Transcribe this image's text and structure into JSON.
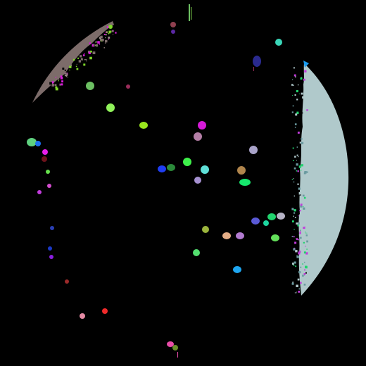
{
  "scene": {
    "background": "#000000",
    "elements": [
      {
        "name": "brown-crescent",
        "color": "#7d6c6a",
        "kind": "crescent"
      },
      {
        "name": "pale-blue-crescent",
        "color": "#b0c9cb",
        "kind": "crescent"
      },
      {
        "name": "blue-marker",
        "color": "#1a9bef",
        "kind": "marker"
      }
    ],
    "blobs": [
      {
        "color": "#8f3f4f"
      },
      {
        "color": "#5b28a3"
      },
      {
        "color": "#7fd62a"
      },
      {
        "color": "#6cbf62"
      },
      {
        "color": "#9a2d5a"
      },
      {
        "color": "#90f25a"
      },
      {
        "color": "#99e61e"
      },
      {
        "color": "#d61ad8"
      },
      {
        "color": "#b47ea6"
      },
      {
        "color": "#5fd17f"
      },
      {
        "color": "#1c6ff0"
      },
      {
        "color": "#a9a3c9"
      },
      {
        "color": "#3ef04a"
      },
      {
        "color": "#2b8a3a"
      },
      {
        "color": "#1f3ef2"
      },
      {
        "color": "#5fe0d8"
      },
      {
        "color": "#b0854c"
      },
      {
        "color": "#a590d0"
      },
      {
        "color": "#16e86d"
      },
      {
        "color": "#e81ee8"
      },
      {
        "color": "#6d131a"
      },
      {
        "color": "#66e04c"
      },
      {
        "color": "#d44dcf"
      },
      {
        "color": "#c23cdc"
      },
      {
        "color": "#2a3fb4"
      },
      {
        "color": "#1b39c8"
      },
      {
        "color": "#8b1ee0"
      },
      {
        "color": "#5a5ad6"
      },
      {
        "color": "#21d36e"
      },
      {
        "color": "#b6b3c6"
      },
      {
        "color": "#1dd7a0"
      },
      {
        "color": "#63e05a"
      },
      {
        "color": "#9bb53c"
      },
      {
        "color": "#e4ad86"
      },
      {
        "color": "#b27bd0"
      },
      {
        "color": "#54e070"
      },
      {
        "color": "#1ea6f0"
      },
      {
        "color": "#9c2a2a"
      },
      {
        "color": "#e48aa4"
      },
      {
        "color": "#f02a2a"
      },
      {
        "color": "#e84ca8"
      },
      {
        "color": "#6a8f2a"
      },
      {
        "color": "#3ad6b8"
      },
      {
        "color": "#2a2a8f"
      }
    ]
  }
}
